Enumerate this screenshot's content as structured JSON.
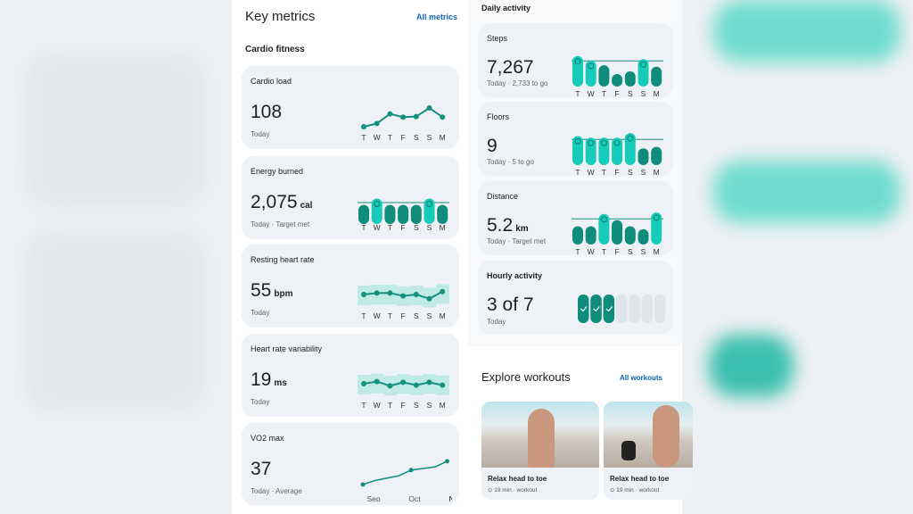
{
  "colors": {
    "bright": "#16cbb9",
    "dark": "#0f8c7c",
    "line": "#15907f",
    "band": "#bfeae5",
    "empty": "#dfe4e8",
    "link": "#0b67b8"
  },
  "key_metrics": {
    "title": "Key metrics",
    "all_label": "All metrics",
    "section": "Cardio fitness"
  },
  "days": [
    "T",
    "W",
    "T",
    "F",
    "S",
    "S",
    "M"
  ],
  "cards": [
    {
      "title": "Cardio load",
      "value": "108",
      "unit": "",
      "caption": "Today",
      "chart": "line",
      "values": [
        1,
        1.6,
        3.4,
        2.8,
        2.9,
        4.5,
        2.8
      ]
    },
    {
      "title": "Energy burned",
      "value": "2,075",
      "unit": "cal",
      "caption": "Today · Target met",
      "chart": "bar",
      "values": [
        0.75,
        1,
        0.75,
        0.75,
        0.75,
        1,
        0.75
      ],
      "met": [
        false,
        true,
        false,
        false,
        false,
        true,
        false
      ]
    },
    {
      "title": "Resting heart rate",
      "value": "55",
      "unit": "bpm",
      "caption": "Today",
      "chart": "range",
      "values": [
        3,
        3.4,
        3.4,
        2.6,
        3,
        1.8,
        3.8
      ]
    },
    {
      "title": "Heart rate variability",
      "value": "19",
      "unit": "ms",
      "caption": "Today",
      "chart": "range",
      "values": [
        3,
        3.6,
        2.4,
        3.4,
        2.6,
        3.4,
        2.6
      ]
    },
    {
      "title": "VO2 max",
      "value": "37",
      "unit": "",
      "caption": "Today · Average",
      "chart": "trend",
      "values": [
        1,
        1.5,
        1.8,
        2.1,
        2.8,
        3,
        3.2,
        3.9
      ],
      "months": [
        "Sep",
        "Oct",
        "Nov"
      ]
    }
  ],
  "daily": {
    "title": "Daily activity",
    "cards": [
      {
        "title": "Steps",
        "value": "7,267",
        "unit": "",
        "caption": "Today · 2,733 to go",
        "values": [
          1,
          0.85,
          0.7,
          0.4,
          0.5,
          0.9,
          0.65
        ],
        "met": [
          true,
          true,
          false,
          false,
          false,
          true,
          false
        ]
      },
      {
        "title": "Floors",
        "value": "9",
        "unit": "",
        "caption": "Today · 5 to go",
        "values": [
          0.95,
          0.9,
          0.9,
          0.9,
          1.05,
          0.55,
          0.6
        ],
        "met": [
          true,
          true,
          true,
          true,
          true,
          false,
          false
        ]
      },
      {
        "title": "Distance",
        "value": "5.2",
        "unit": "km",
        "caption": "Today · Target met",
        "values": [
          0.6,
          0.6,
          1,
          0.8,
          0.6,
          0.5,
          1.05
        ],
        "met": [
          false,
          false,
          true,
          false,
          false,
          false,
          true
        ]
      }
    ]
  },
  "hourly": {
    "title": "Hourly activity",
    "value": "3 of 7",
    "caption": "Today",
    "completed": 3,
    "total": 7
  },
  "explore": {
    "title": "Explore workouts",
    "all_label": "All workouts",
    "workouts": [
      {
        "title": "Relax head to toe",
        "meta": "19 min · workout"
      },
      {
        "title": "Relax head to toe",
        "meta": "19 min · workout"
      }
    ]
  }
}
